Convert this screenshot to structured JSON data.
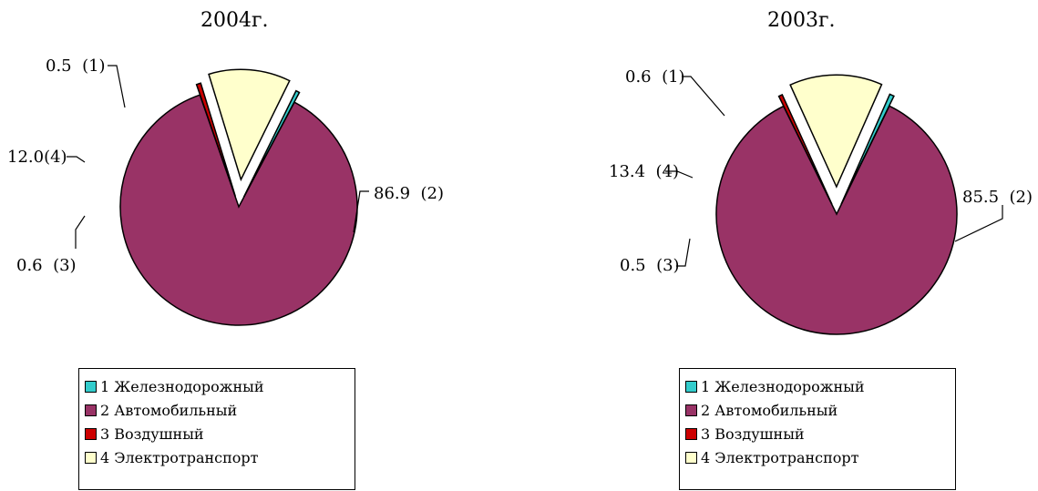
{
  "colors": {
    "rail": "#33CCCC",
    "auto": "#993366",
    "air": "#CC0000",
    "electric": "#FFFFCC",
    "outline": "#000000"
  },
  "chart_data": [
    {
      "type": "pie",
      "title": "2004г.",
      "slices": [
        {
          "name": "1 Железнодорожный",
          "value": 0.5,
          "label": "0.5  (1)",
          "color": "#33CCCC"
        },
        {
          "name": "2 Автомобильный",
          "value": 86.9,
          "label": "86.9  (2)",
          "color": "#993366"
        },
        {
          "name": "3 Воздушный",
          "value": 0.6,
          "label": "0.6  (3)",
          "color": "#CC0000"
        },
        {
          "name": "4 Электротранспорт",
          "value": 12.0,
          "label": "12.0(4)",
          "color": "#FFFFCC"
        }
      ],
      "legend": [
        "1 Железнодорожный",
        "2 Автомобильный",
        "3 Воздушный",
        "4 Электротранспорт"
      ]
    },
    {
      "type": "pie",
      "title": "2003г.",
      "slices": [
        {
          "name": "1 Железнодорожный",
          "value": 0.6,
          "label": "0.6  (1)",
          "color": "#33CCCC"
        },
        {
          "name": "2 Автомобильный",
          "value": 85.5,
          "label": "85.5  (2)",
          "color": "#993366"
        },
        {
          "name": "3 Воздушный",
          "value": 0.5,
          "label": "0.5  (3)",
          "color": "#CC0000"
        },
        {
          "name": "4 Электротранспорт",
          "value": 13.4,
          "label": "13.4  (4)",
          "color": "#FFFFCC"
        }
      ],
      "legend": [
        "1 Железнодорожный",
        "2 Автомобильный",
        "3 Воздушный",
        "4 Электротранспорт"
      ]
    }
  ]
}
